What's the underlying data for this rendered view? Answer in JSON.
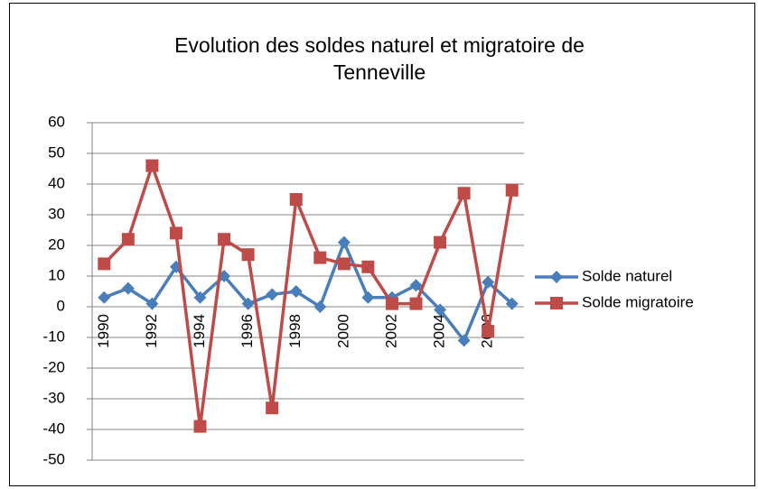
{
  "chart_data": {
    "type": "line",
    "title": [
      "Evolution des soldes naturel et migratoire de",
      "Tenneville"
    ],
    "categories": [
      "1990",
      null,
      "1992",
      null,
      "1994",
      null,
      "1996",
      null,
      "1998",
      null,
      "2000",
      null,
      "2002",
      null,
      "2004",
      null,
      "2006",
      null
    ],
    "series": [
      {
        "name": "Solde naturel",
        "color": "#4a7ebb",
        "marker": "diamond",
        "values": [
          3,
          6,
          1,
          13,
          3,
          10,
          1,
          4,
          5,
          0,
          21,
          3,
          3,
          7,
          -1,
          -11,
          8,
          1
        ]
      },
      {
        "name": "Solde migratoire",
        "color": "#be4b48",
        "marker": "square",
        "values": [
          14,
          22,
          46,
          24,
          -39,
          22,
          17,
          -33,
          35,
          16,
          14,
          13,
          1,
          1,
          21,
          37,
          -8,
          38
        ]
      }
    ],
    "ylim": [
      -50,
      60
    ],
    "yticks": [
      -50,
      -40,
      -30,
      -20,
      -10,
      0,
      10,
      20,
      30,
      40,
      50,
      60
    ],
    "grid": true,
    "legend": "right"
  }
}
